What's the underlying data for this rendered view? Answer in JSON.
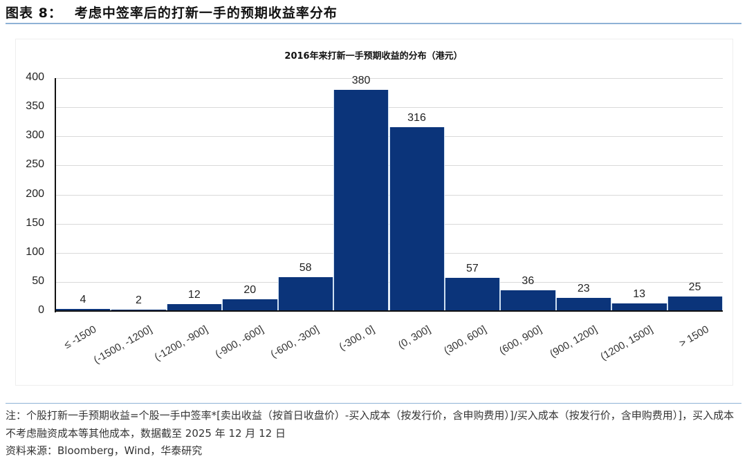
{
  "figure": {
    "number_label": "图表 8：",
    "title": "考虑中签率后的打新一手的预期收益率分布"
  },
  "chart_data": {
    "type": "bar",
    "title": "2016年来打新一手预期收益的分布（港元）",
    "xlabel": "",
    "ylabel": "",
    "ylim": [
      0,
      400
    ],
    "yticks": [
      0,
      50,
      100,
      150,
      200,
      250,
      300,
      350,
      400
    ],
    "grid": true,
    "legend": null,
    "bar_color": "#0b347a",
    "categories": [
      "≤ -1500",
      "(-1500, -1200]",
      "(-1200, -900]",
      "(-900, -600]",
      "(-600, -300]",
      "(-300, 0]",
      "(0, 300]",
      "(300, 600]",
      "(600, 900]",
      "(900, 1200]",
      "(1200, 1500]",
      "> 1500"
    ],
    "values": [
      4,
      2,
      12,
      20,
      58,
      380,
      316,
      57,
      36,
      23,
      13,
      25
    ]
  },
  "footer": {
    "note": "注：个股打新一手预期收益=个股一手中签率*[卖出收益（按首日收盘价）-买入成本（按发行价，含申购费用）]/买入成本（按发行价，含申购费用）]，买入成本不考虑融资成本等其他成本，数据截至 2025 年 12 月 12 日",
    "source": "资料来源：Bloomberg，Wind，华泰研究"
  }
}
